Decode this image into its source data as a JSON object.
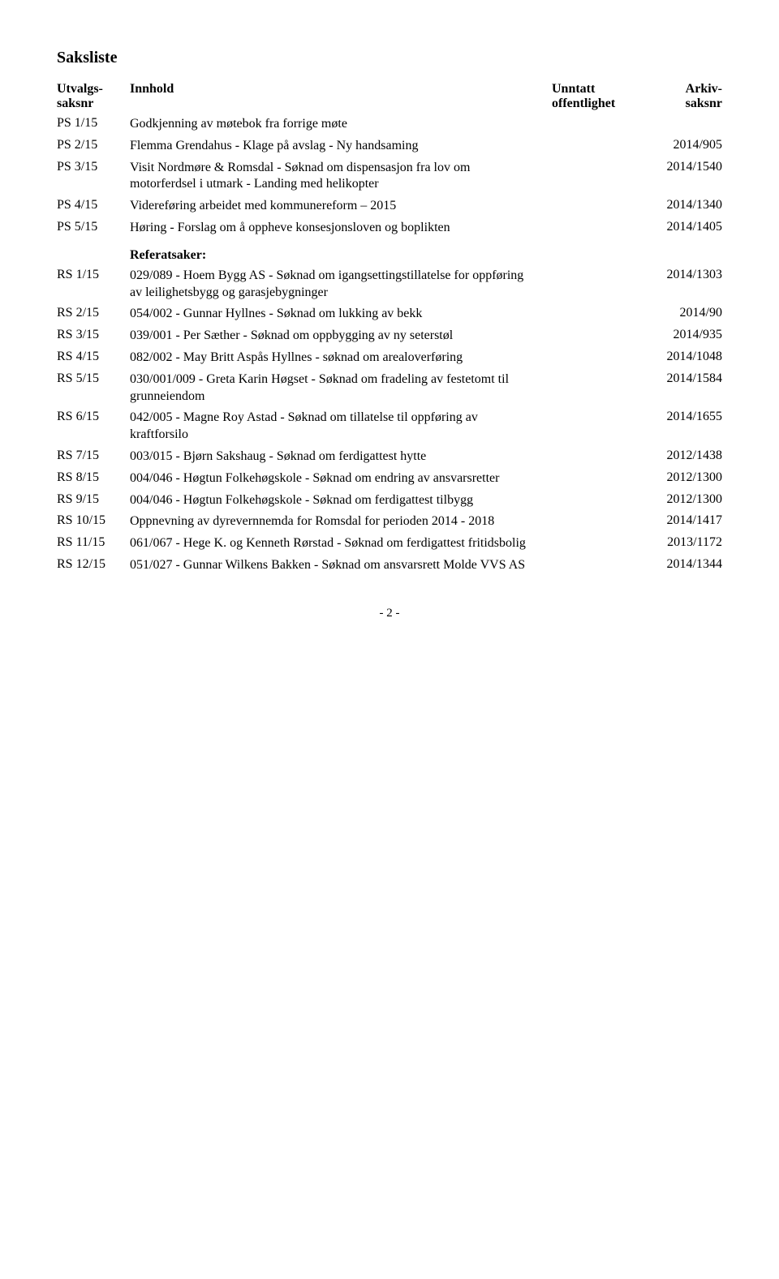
{
  "title": "Saksliste",
  "headers": {
    "col1_l1": "Utvalgs-",
    "col1_l2": "saksnr",
    "col2": "Innhold",
    "col3_l1": "Unntatt",
    "col3_l2": "offentlighet",
    "col4_l1": "Arkiv-",
    "col4_l2": "saksnr"
  },
  "ps": [
    {
      "ref": "PS 1/15",
      "content": "Godkjenning av møtebok fra forrige møte",
      "arkiv": ""
    },
    {
      "ref": "PS 2/15",
      "content": "Flemma Grendahus - Klage på avslag - Ny handsaming",
      "arkiv": "2014/905"
    },
    {
      "ref": "PS 3/15",
      "content": "Visit Nordmøre & Romsdal - Søknad om dispensasjon fra lov om motorferdsel i utmark - Landing med helikopter",
      "arkiv": "2014/1540"
    },
    {
      "ref": "PS 4/15",
      "content": "Videreføring arbeidet med kommunereform – 2015",
      "arkiv": "2014/1340"
    },
    {
      "ref": "PS 5/15",
      "content": "Høring - Forslag om å oppheve konsesjonsloven og boplikten",
      "arkiv": "2014/1405"
    }
  ],
  "referat_label": "Referatsaker:",
  "rs": [
    {
      "ref": "RS 1/15",
      "content": "029/089 - Hoem Bygg AS - Søknad om igangsettingstillatelse for oppføring av leilighetsbygg og garasjebygninger",
      "arkiv": "2014/1303"
    },
    {
      "ref": "RS 2/15",
      "content": "054/002 - Gunnar Hyllnes - Søknad om lukking av bekk",
      "arkiv": "2014/90"
    },
    {
      "ref": "RS 3/15",
      "content": "039/001 - Per Sæther - Søknad om oppbygging av ny seterstøl",
      "arkiv": "2014/935"
    },
    {
      "ref": "RS 4/15",
      "content": "082/002 - May Britt Aspås Hyllnes - søknad om arealoverføring",
      "arkiv": "2014/1048"
    },
    {
      "ref": "RS 5/15",
      "content": "030/001/009 - Greta Karin Høgset - Søknad om fradeling av festetomt til grunneiendom",
      "arkiv": "2014/1584"
    },
    {
      "ref": "RS 6/15",
      "content": "042/005 - Magne Roy Astad - Søknad om tillatelse til oppføring av kraftforsilo",
      "arkiv": "2014/1655"
    },
    {
      "ref": "RS 7/15",
      "content": "003/015 - Bjørn Sakshaug - Søknad om ferdigattest hytte",
      "arkiv": "2012/1438"
    },
    {
      "ref": "RS 8/15",
      "content": "004/046 - Høgtun Folkehøgskole - Søknad om endring av ansvarsretter",
      "arkiv": "2012/1300"
    },
    {
      "ref": "RS 9/15",
      "content": "004/046 - Høgtun Folkehøgskole - Søknad om ferdigattest tilbygg",
      "arkiv": "2012/1300"
    },
    {
      "ref": "RS 10/15",
      "content": "Oppnevning av dyrevernnemda for Romsdal for perioden 2014 - 2018",
      "arkiv": "2014/1417"
    },
    {
      "ref": "RS 11/15",
      "content": "061/067 - Hege K. og Kenneth Rørstad - Søknad om ferdigattest fritidsbolig",
      "arkiv": "2013/1172"
    },
    {
      "ref": "RS 12/15",
      "content": "051/027 - Gunnar Wilkens Bakken - Søknad om ansvarsrett Molde VVS AS",
      "arkiv": "2014/1344"
    }
  ],
  "page_number": "- 2 -"
}
